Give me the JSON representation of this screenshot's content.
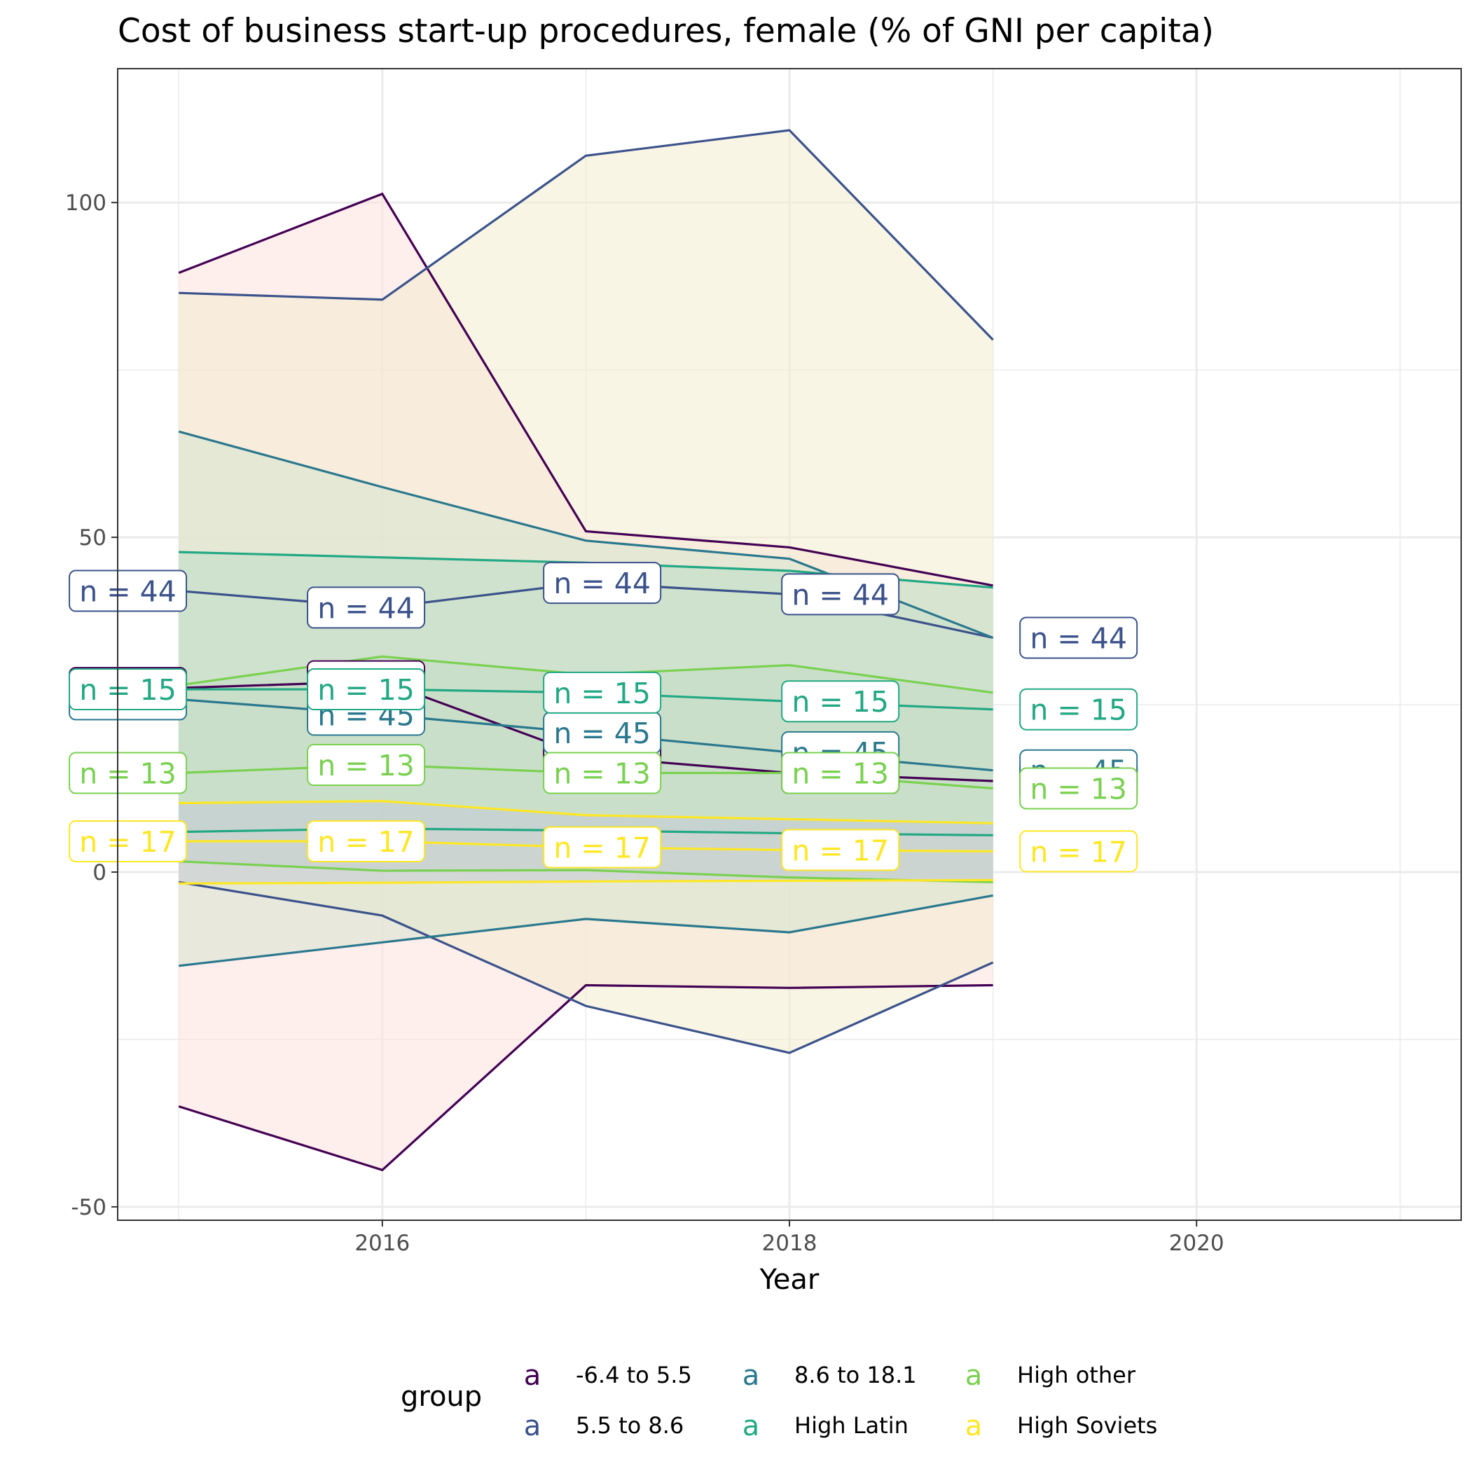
{
  "chart_data": {
    "type": "line",
    "title": "Cost of business start-up procedures, female (% of GNI per capita)",
    "xlabel": "Year",
    "ylabel": "",
    "xlim": [
      2014.7,
      2021.3
    ],
    "ylim": [
      -52,
      120
    ],
    "x_ticks": [
      2016,
      2018,
      2020
    ],
    "y_ticks": [
      -50,
      0,
      50,
      100
    ],
    "x_minor_gridlines": [
      2015,
      2017,
      2019,
      2021
    ],
    "y_minor_gridlines": [
      -25,
      25,
      75
    ],
    "grid": true,
    "legend": {
      "title": "group",
      "position": "bottom",
      "key_glyph": "a"
    },
    "x": [
      2015,
      2016,
      2017,
      2018,
      2019
    ],
    "series": [
      {
        "name": "-6.4 to 5.5",
        "color": "#440154",
        "fill": "#fde0dd",
        "mean": [
          27.5,
          28.5,
          17.3,
          14.8,
          13.6
        ],
        "upper": [
          89.5,
          101.3,
          50.9,
          48.5,
          42.8
        ],
        "lower": [
          -35.0,
          -44.5,
          -16.9,
          -17.3,
          -16.9
        ],
        "labels": [
          "n = 45",
          "n = 45",
          "n = 45",
          "n = 45",
          "n = 45"
        ]
      },
      {
        "name": "5.5 to 8.6",
        "color": "#3b528b",
        "fill": "#f2edd0",
        "mean": [
          42.0,
          39.5,
          43.2,
          41.5,
          35.0
        ],
        "upper": [
          86.5,
          85.5,
          107.0,
          110.8,
          79.5
        ],
        "lower": [
          -1.5,
          -6.5,
          -20.0,
          -27.0,
          -13.5
        ],
        "labels": [
          "n = 44",
          "n = 44",
          "n = 44",
          "n = 44",
          "n = 44"
        ]
      },
      {
        "name": "8.6 to 18.1",
        "color": "#21908c",
        "fill": "#d7e3d2",
        "line_color": "#2a788e",
        "mean": [
          25.8,
          23.5,
          20.8,
          17.9,
          15.2
        ],
        "upper": [
          65.8,
          57.5,
          49.5,
          46.8,
          35.0
        ],
        "lower": [
          -14.0,
          -10.5,
          -7.0,
          -9.0,
          -3.5
        ],
        "labels": [
          "n = 45",
          "n = 45",
          "n = 45",
          "n = 45",
          "n = 45"
        ]
      },
      {
        "name": "High Latin",
        "color": "#22a884",
        "fill": "#bcdcc7",
        "mean": [
          27.3,
          27.3,
          26.8,
          25.5,
          24.3
        ],
        "upper": [
          47.8,
          47.0,
          46.2,
          45.0,
          42.5
        ],
        "lower": [
          6.0,
          6.5,
          6.2,
          5.8,
          5.5
        ],
        "labels": [
          "n = 15",
          "n = 15",
          "n = 15",
          "n = 15",
          "n = 15"
        ]
      },
      {
        "name": "High other",
        "color": "#7ad151",
        "fill": "#c6dcc6",
        "mean": [
          14.8,
          16.0,
          14.8,
          14.8,
          12.5
        ],
        "upper": [
          27.9,
          32.2,
          29.5,
          30.9,
          26.8
        ],
        "lower": [
          1.6,
          0.2,
          0.3,
          -0.8,
          -1.5
        ],
        "labels": [
          "n = 13",
          "n = 13",
          "n = 13",
          "n = 13",
          "n = 13"
        ]
      },
      {
        "name": "High Soviets",
        "color": "#fde725",
        "fill": "#c3c9d6",
        "mean": [
          4.6,
          4.6,
          3.7,
          3.3,
          3.1
        ],
        "upper": [
          10.3,
          10.6,
          8.5,
          7.9,
          7.3
        ],
        "lower": [
          -1.7,
          -1.6,
          -1.4,
          -1.3,
          -1.2
        ],
        "labels": [
          "n = 17",
          "n = 17",
          "n = 17",
          "n = 17",
          "n = 17"
        ]
      }
    ]
  }
}
